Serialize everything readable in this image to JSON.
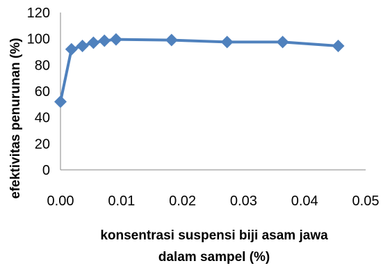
{
  "chart_data": {
    "type": "line",
    "title": "",
    "xlabel_lines": [
      "konsentrasi suspensi biji asam jawa",
      "dalam sampel (%)"
    ],
    "ylabel": "efektivitas penurunan (%)",
    "xlim": [
      0,
      0.05
    ],
    "ylim": [
      0,
      120
    ],
    "xticks": [
      "0.00",
      "0.01",
      "0.02",
      "0.03",
      "0.04",
      "0.05"
    ],
    "yticks": [
      "0",
      "20",
      "40",
      "60",
      "80",
      "100",
      "120"
    ],
    "grid": false,
    "legend": "none",
    "series": [
      {
        "color": "#4F81BD",
        "marker": "diamond",
        "points": [
          {
            "x": 0.0,
            "y": 52
          },
          {
            "x": 0.0018,
            "y": 92
          },
          {
            "x": 0.0036,
            "y": 94.5
          },
          {
            "x": 0.0054,
            "y": 97
          },
          {
            "x": 0.0072,
            "y": 98.5
          },
          {
            "x": 0.0091,
            "y": 99.5
          },
          {
            "x": 0.0182,
            "y": 99
          },
          {
            "x": 0.0273,
            "y": 97.5
          },
          {
            "x": 0.0364,
            "y": 97.5
          },
          {
            "x": 0.0455,
            "y": 94.5
          }
        ]
      }
    ]
  }
}
